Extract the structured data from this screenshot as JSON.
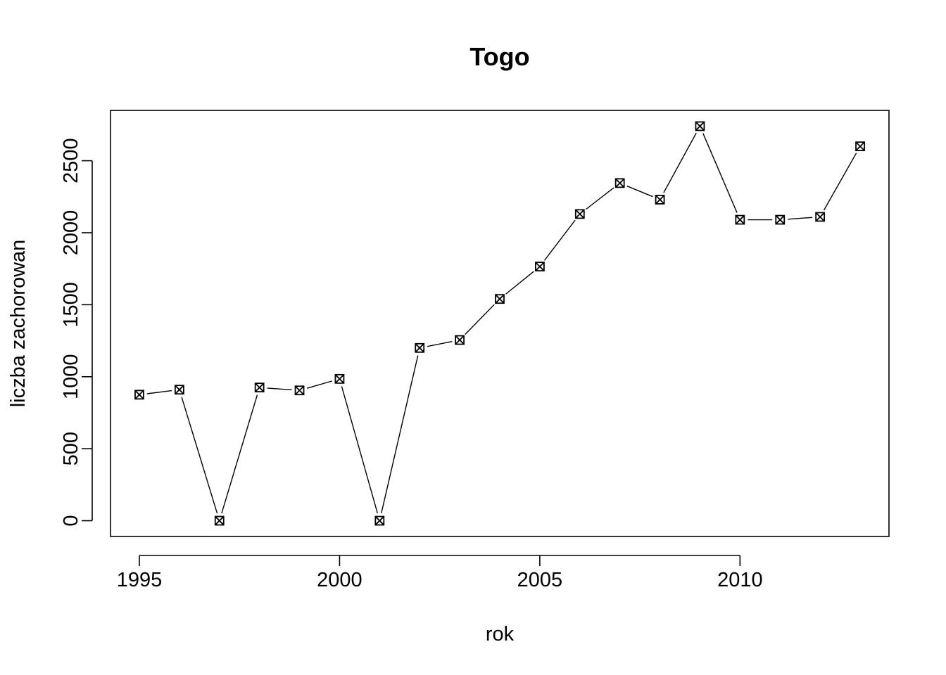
{
  "chart_data": {
    "type": "line",
    "title": "Togo",
    "xlabel": "rok",
    "ylabel": "liczba zachorowan",
    "x": [
      1995,
      1996,
      1997,
      1998,
      1999,
      2000,
      2001,
      2002,
      2003,
      2004,
      2005,
      2006,
      2007,
      2008,
      2009,
      2010,
      2011,
      2012,
      2013
    ],
    "values": [
      875,
      910,
      0,
      925,
      905,
      985,
      0,
      1200,
      1255,
      1540,
      1765,
      2130,
      2345,
      2230,
      2740,
      2090,
      2090,
      2110,
      2600
    ],
    "xlim": [
      1994.28,
      2013.72
    ],
    "ylim": [
      -109.6,
      2849.6
    ],
    "x_ticks": [
      1995,
      2000,
      2005,
      2010
    ],
    "y_ticks": [
      0,
      500,
      1000,
      1500,
      2000,
      2500
    ],
    "marker": "boxed-x",
    "line_style": "both-gapped",
    "grid": false,
    "legend": "none"
  }
}
